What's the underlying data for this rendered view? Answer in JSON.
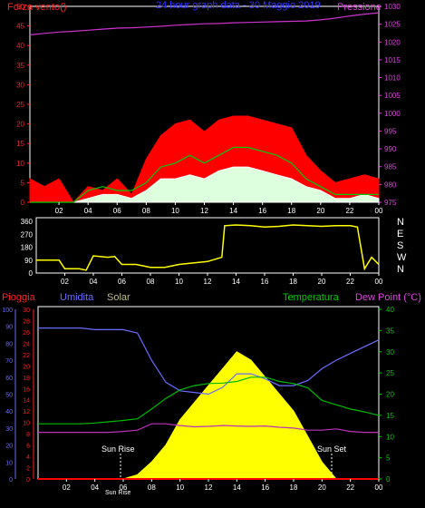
{
  "top": {
    "title": "24 hour graph data - 30 Maggio 2019",
    "left_label": "Forza vento()",
    "right_label": "Pressione",
    "y_left_ticks": [
      0,
      5,
      10,
      15,
      20,
      25,
      30,
      35,
      40,
      45,
      50
    ],
    "y_right_ticks": [
      975,
      980,
      985,
      990,
      995,
      1000,
      1005,
      1010,
      1015,
      1020,
      1025,
      1030
    ],
    "x_ticks": [
      "02",
      "04",
      "06",
      "08",
      "10",
      "12",
      "14",
      "16",
      "18",
      "20",
      "22",
      "00"
    ]
  },
  "direction": {
    "y_ticks": [
      0,
      90,
      180,
      270,
      360
    ],
    "compass": [
      "N",
      "W",
      "S",
      "E",
      "N"
    ],
    "x_ticks": [
      "02",
      "04",
      "06",
      "08",
      "10",
      "12",
      "14",
      "16",
      "18",
      "20",
      "22",
      "00"
    ]
  },
  "bottom": {
    "labels": {
      "rain": "Pioggia",
      "humidity": "Umidita",
      "solar": "Solar",
      "temperature": "Temperatura",
      "dewpoint": "Dew Point (°C)"
    },
    "humidity_ticks": [
      0,
      10,
      20,
      30,
      40,
      50,
      60,
      70,
      80,
      90,
      100
    ],
    "rain_ticks": [
      0,
      2,
      4,
      6,
      8,
      10,
      12,
      14,
      16,
      18,
      20,
      22,
      24,
      26,
      28,
      30
    ],
    "temp_ticks": [
      0,
      5,
      10,
      15,
      20,
      25,
      30,
      35,
      40
    ],
    "sun_rise": "Sun Rise",
    "sun_set": "Sun Set",
    "sun_rise_overlay": "Sun Rise",
    "x_ticks": [
      "02",
      "04",
      "06",
      "08",
      "10",
      "12",
      "14",
      "16",
      "18",
      "20",
      "22",
      "00"
    ]
  },
  "colors": {
    "wind_gust": "#ff0000",
    "wind_avg": "#00cc00",
    "wind_speed": "#ffffff",
    "pressure": "#cc33cc",
    "direction": "#ffff00",
    "humidity": "#6b6bff",
    "temperature": "#00bb00",
    "dewpoint": "#bb33bb",
    "solar": "#ffff00",
    "rain": "#ff0000"
  },
  "chart_data": [
    {
      "type": "line",
      "name": "wind-pressure",
      "x_hours": [
        0,
        1,
        2,
        3,
        4,
        5,
        6,
        7,
        8,
        9,
        10,
        11,
        12,
        13,
        14,
        15,
        16,
        17,
        18,
        19,
        20,
        21,
        22,
        23,
        24
      ],
      "series": [
        {
          "key": "pressure",
          "axis": "right",
          "values": [
            1022,
            1022.4,
            1022.8,
            1023,
            1023.3,
            1023.6,
            1023.9,
            1024,
            1024.2,
            1024.4,
            1024.7,
            1024.9,
            1025.1,
            1025.2,
            1025.4,
            1025.5,
            1025.6,
            1025.7,
            1025.8,
            1025.9,
            1026.2,
            1026.7,
            1027.3,
            1027.8,
            1028.2
          ]
        },
        {
          "key": "wind_gust",
          "axis": "left",
          "values": [
            6,
            4,
            6,
            0,
            4,
            3,
            6,
            2,
            11,
            17,
            20,
            21,
            18,
            21,
            22,
            22,
            21,
            20,
            19,
            12,
            8,
            5,
            6,
            7,
            6
          ]
        },
        {
          "key": "wind_avg",
          "axis": "left",
          "values": [
            0,
            0,
            0,
            0,
            3,
            4,
            3,
            3,
            5,
            9,
            10,
            12,
            10,
            12,
            14,
            14,
            13,
            12,
            10,
            6,
            4,
            2,
            2,
            2,
            2
          ]
        },
        {
          "key": "wind_speed",
          "axis": "left",
          "values": [
            0,
            0,
            0,
            0,
            1,
            2,
            2,
            1,
            3,
            6,
            6,
            7,
            6,
            8,
            9,
            9,
            8,
            7,
            6,
            4,
            3,
            1,
            1,
            2,
            1
          ]
        }
      ],
      "ylim_left": [
        0,
        50
      ],
      "ylim_right": [
        975,
        1030
      ],
      "xlim": [
        0,
        24
      ]
    },
    {
      "type": "line",
      "name": "wind-direction",
      "x_hours": [
        0,
        1,
        1.6,
        2,
        3,
        3.5,
        4,
        5,
        5.5,
        6,
        7,
        8,
        9,
        10,
        11,
        12,
        13,
        13.2,
        14,
        15,
        16,
        17,
        18,
        19,
        20,
        21,
        22,
        22.5,
        23,
        23.5,
        24
      ],
      "series": [
        {
          "key": "direction",
          "values": [
            90,
            90,
            90,
            30,
            30,
            20,
            120,
            110,
            115,
            60,
            60,
            40,
            40,
            60,
            70,
            80,
            110,
            330,
            335,
            330,
            320,
            325,
            335,
            330,
            325,
            330,
            330,
            320,
            30,
            110,
            60
          ]
        }
      ],
      "ylim": [
        0,
        360
      ],
      "xlim": [
        0,
        24
      ]
    },
    {
      "type": "area",
      "name": "temp-humidity-solar",
      "x_hours": [
        0,
        1,
        2,
        3,
        4,
        5,
        6,
        7,
        8,
        9,
        10,
        11,
        12,
        13,
        14,
        15,
        16,
        17,
        18,
        19,
        20,
        21,
        22,
        23,
        24
      ],
      "series": [
        {
          "key": "humidity",
          "axis": "left",
          "values": [
            89,
            89,
            89,
            89,
            88,
            88,
            88,
            86,
            70,
            57,
            52,
            51,
            50,
            54,
            62,
            62,
            59,
            55,
            55,
            58,
            65,
            70,
            74,
            78,
            82
          ]
        },
        {
          "key": "temperature",
          "axis": "right",
          "values": [
            13,
            13,
            13,
            13,
            13.2,
            13.5,
            13.8,
            14.2,
            16.5,
            19,
            21,
            22,
            22.5,
            22.6,
            23,
            24,
            24,
            23,
            22.5,
            21.5,
            18.5,
            17.5,
            16.5,
            15.8,
            15
          ]
        },
        {
          "key": "dewpoint",
          "axis": "right",
          "values": [
            11,
            11,
            11,
            11,
            11,
            11,
            11.2,
            11.5,
            13,
            13,
            12.6,
            12.3,
            12.4,
            12.6,
            12.5,
            12.4,
            12.5,
            12.2,
            12,
            11.5,
            11.5,
            11.8,
            11.2,
            11,
            11
          ]
        },
        {
          "key": "solar",
          "axis": "right",
          "values": [
            0,
            0,
            0,
            0,
            0,
            0,
            0,
            1,
            4,
            8,
            14,
            18,
            22,
            26,
            30,
            28,
            24,
            20,
            16,
            10,
            4,
            0,
            0,
            0,
            0
          ]
        },
        {
          "key": "rain",
          "axis": "rain",
          "values": [
            0,
            0,
            0,
            0,
            0,
            0,
            0,
            0,
            0,
            0,
            0,
            0,
            0,
            0,
            0,
            0,
            0,
            0,
            0,
            0,
            0,
            0,
            0,
            0,
            0
          ]
        }
      ],
      "ylim_humidity": [
        0,
        100
      ],
      "ylim_rain": [
        0,
        30
      ],
      "ylim_temp": [
        0,
        40
      ],
      "xlim": [
        0,
        24
      ]
    }
  ]
}
